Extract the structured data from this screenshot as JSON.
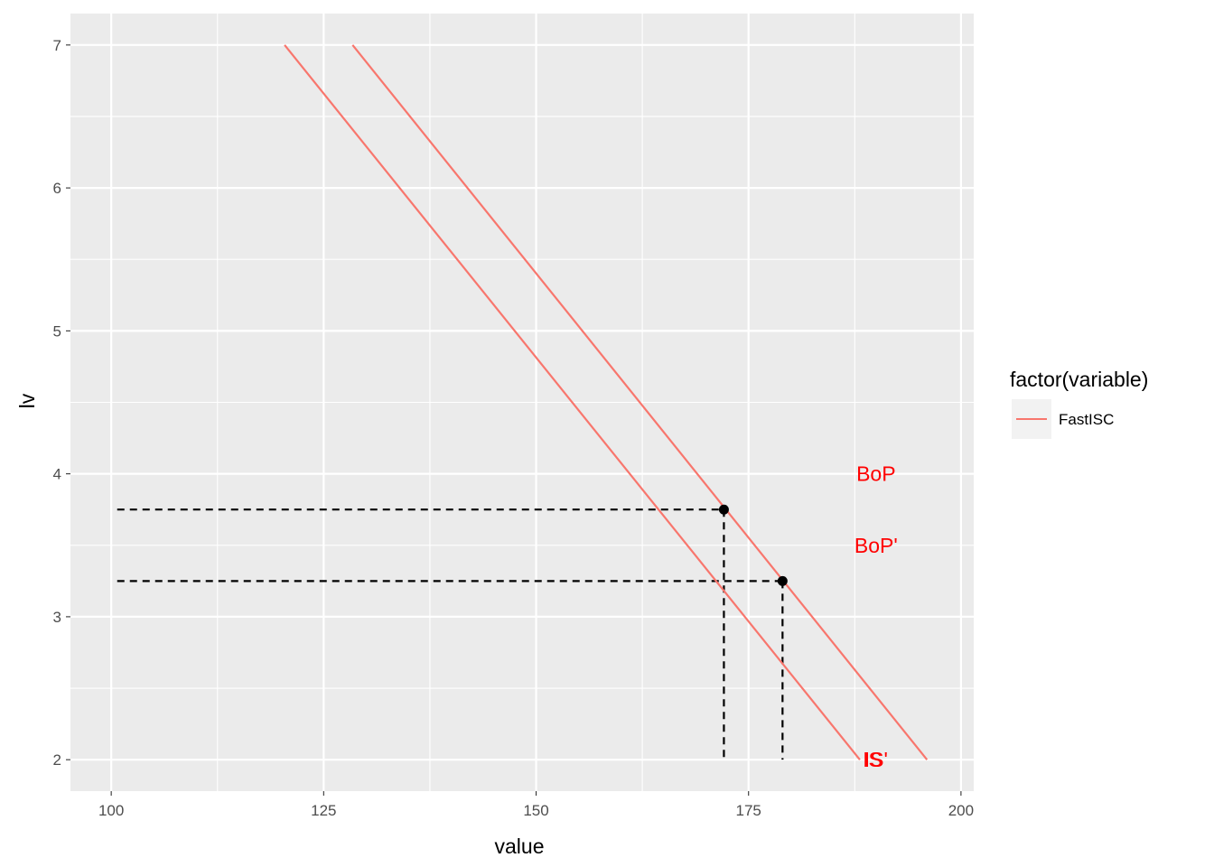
{
  "chart_data": {
    "type": "line",
    "xlabel": "value",
    "ylabel": "lv",
    "xlim": [
      95.2,
      201.5
    ],
    "ylim": [
      1.78,
      7.22
    ],
    "x_ticks": [
      100,
      125,
      150,
      175,
      200
    ],
    "y_ticks": [
      2,
      3,
      4,
      5,
      6,
      7
    ],
    "grid": true,
    "background": "#ebebeb",
    "legend": {
      "title": "factor(variable)",
      "position": "right",
      "entries": [
        {
          "label": "FastISC",
          "color": "#f8766d"
        }
      ]
    },
    "series": [
      {
        "name": "FastISC",
        "color": "#f8766d",
        "x": [
          120.4,
          188.1
        ],
        "y": [
          7,
          2
        ]
      },
      {
        "name": "FastISC",
        "color": "#f8766d",
        "x": [
          128.4,
          196.0
        ],
        "y": [
          7,
          2
        ]
      }
    ],
    "points": [
      {
        "x": 172.1,
        "y": 3.75
      },
      {
        "x": 179.0,
        "y": 3.25
      }
    ],
    "guides": [
      {
        "from": [
          100.7,
          3.75
        ],
        "to": [
          172.1,
          3.75
        ]
      },
      {
        "from": [
          172.1,
          3.75
        ],
        "to": [
          172.1,
          2.0
        ]
      },
      {
        "from": [
          100.7,
          3.25
        ],
        "to": [
          179.0,
          3.25
        ]
      },
      {
        "from": [
          179.0,
          3.25
        ],
        "to": [
          179.0,
          2.0
        ]
      }
    ],
    "annotations": [
      {
        "text": "BoP",
        "x": 190.0,
        "y": 4.0
      },
      {
        "text": "BoP'",
        "x": 190.0,
        "y": 3.5
      },
      {
        "text": "IS",
        "x": 189.6,
        "y": 2.0
      },
      {
        "text": "IS'",
        "x": 190.0,
        "y": 2.0
      }
    ],
    "annotation_color": "#ff0000"
  }
}
